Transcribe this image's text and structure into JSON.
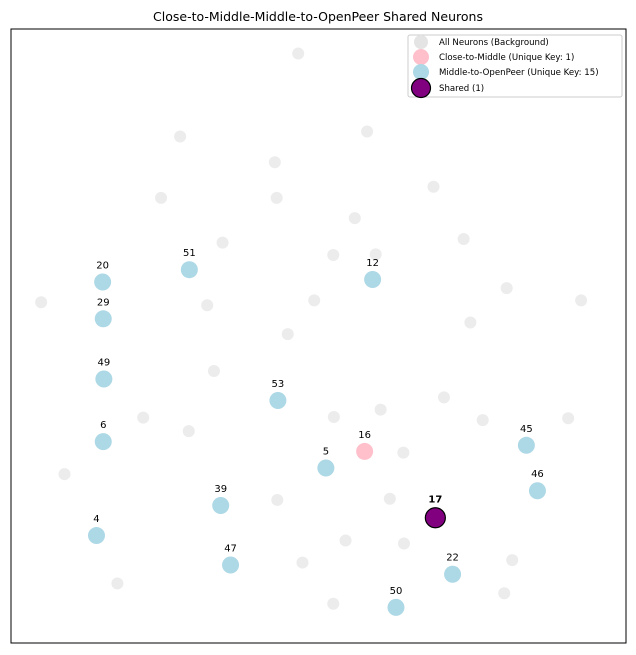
{
  "chart_data": {
    "type": "scatter",
    "title": "Close-to-Middle-Middle-to-OpenPeer Shared Neurons",
    "xlabel": "",
    "ylabel": "",
    "xlim": [
      0,
      1
    ],
    "ylim": [
      0,
      1
    ],
    "grid": false,
    "axis_ticks": false,
    "legend_position": "top-right",
    "colors": {
      "background": "#e4e4e4",
      "close_to_middle": "#ffc0cb",
      "middle_to_openpeer": "#add8e6",
      "shared": "#800080",
      "shared_edge": "#000000"
    },
    "legend": [
      {
        "series": "background",
        "label": "All Neurons (Background)"
      },
      {
        "series": "close_to_middle",
        "label": "Close-to-Middle (Unique Key: 1)"
      },
      {
        "series": "middle_to_openpeer",
        "label": "Middle-to-OpenPeer (Unique Key: 15)"
      },
      {
        "series": "shared",
        "label": "Shared (1)"
      }
    ],
    "series": [
      {
        "key": "background",
        "points": [
          [
            0.467,
            0.96
          ],
          [
            0.275,
            0.825
          ],
          [
            0.579,
            0.833
          ],
          [
            0.429,
            0.783
          ],
          [
            0.432,
            0.725
          ],
          [
            0.244,
            0.725
          ],
          [
            0.687,
            0.743
          ],
          [
            0.559,
            0.692
          ],
          [
            0.344,
            0.652
          ],
          [
            0.524,
            0.632
          ],
          [
            0.593,
            0.633
          ],
          [
            0.736,
            0.658
          ],
          [
            0.806,
            0.578
          ],
          [
            0.049,
            0.555
          ],
          [
            0.493,
            0.558
          ],
          [
            0.319,
            0.55
          ],
          [
            0.747,
            0.522
          ],
          [
            0.927,
            0.558
          ],
          [
            0.45,
            0.503
          ],
          [
            0.33,
            0.443
          ],
          [
            0.704,
            0.4
          ],
          [
            0.601,
            0.38
          ],
          [
            0.525,
            0.368
          ],
          [
            0.215,
            0.367
          ],
          [
            0.767,
            0.363
          ],
          [
            0.906,
            0.366
          ],
          [
            0.289,
            0.345
          ],
          [
            0.638,
            0.31
          ],
          [
            0.087,
            0.275
          ],
          [
            0.433,
            0.233
          ],
          [
            0.616,
            0.235
          ],
          [
            0.544,
            0.167
          ],
          [
            0.639,
            0.162
          ],
          [
            0.474,
            0.131
          ],
          [
            0.815,
            0.135
          ],
          [
            0.173,
            0.097
          ],
          [
            0.802,
            0.081
          ],
          [
            0.524,
            0.064
          ]
        ]
      },
      {
        "key": "close_to_middle",
        "points": [
          {
            "x": 0.575,
            "y": 0.312,
            "label": "16"
          }
        ]
      },
      {
        "key": "middle_to_openpeer",
        "points": [
          {
            "x": 0.149,
            "y": 0.588,
            "label": "20"
          },
          {
            "x": 0.29,
            "y": 0.608,
            "label": "51"
          },
          {
            "x": 0.588,
            "y": 0.592,
            "label": "12"
          },
          {
            "x": 0.15,
            "y": 0.528,
            "label": "29"
          },
          {
            "x": 0.151,
            "y": 0.43,
            "label": "49"
          },
          {
            "x": 0.434,
            "y": 0.395,
            "label": "53"
          },
          {
            "x": 0.15,
            "y": 0.328,
            "label": "6"
          },
          {
            "x": 0.512,
            "y": 0.285,
            "label": "5"
          },
          {
            "x": 0.838,
            "y": 0.322,
            "label": "45"
          },
          {
            "x": 0.856,
            "y": 0.248,
            "label": "46"
          },
          {
            "x": 0.341,
            "y": 0.224,
            "label": "39"
          },
          {
            "x": 0.139,
            "y": 0.175,
            "label": "4"
          },
          {
            "x": 0.357,
            "y": 0.127,
            "label": "47"
          },
          {
            "x": 0.718,
            "y": 0.112,
            "label": "22"
          },
          {
            "x": 0.626,
            "y": 0.058,
            "label": "50"
          }
        ]
      },
      {
        "key": "shared",
        "points": [
          {
            "x": 0.69,
            "y": 0.204,
            "label": "17"
          }
        ]
      }
    ]
  }
}
